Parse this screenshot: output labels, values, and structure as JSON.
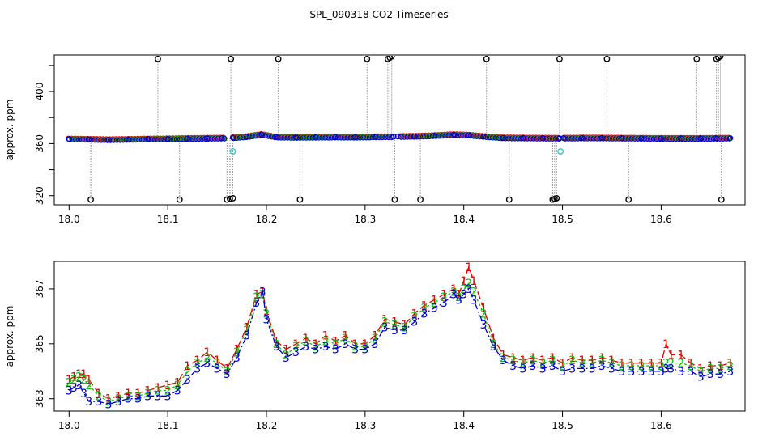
{
  "title": "SPL_090318  CO2 Timeseries",
  "colors": {
    "series1": "#e00000",
    "series2": "#10c010",
    "series3": "#0000d0",
    "outlier": "#000000",
    "flagged": "#20d0d0",
    "droplines": "#909090"
  },
  "chart_data": [
    {
      "type": "scatter",
      "name": "overview",
      "title": "SPL_090318  CO2 Timeseries",
      "xlabel": "",
      "ylabel": "approx. ppm",
      "xlim": [
        17.985,
        18.685
      ],
      "ylim": [
        313,
        428
      ],
      "xticks": [
        18.0,
        18.1,
        18.2,
        18.3,
        18.4,
        18.5,
        18.6
      ],
      "xtick_labels": [
        "18.0",
        "18.1",
        "18.2",
        "18.3",
        "18.4",
        "18.5",
        "18.6"
      ],
      "yticks": [
        320,
        360,
        400
      ],
      "ytick_labels": [
        "320",
        "360",
        "400"
      ],
      "gaps": [
        [
          18.158,
          18.166
        ],
        [
          18.329,
          18.333
        ],
        [
          18.497,
          18.501
        ]
      ],
      "main_series": {
        "x": [
          18.0,
          18.02,
          18.04,
          18.06,
          18.08,
          18.1,
          18.12,
          18.14,
          18.155,
          18.166,
          18.18,
          18.195,
          18.21,
          18.23,
          18.25,
          18.27,
          18.29,
          18.31,
          18.329,
          18.333,
          18.35,
          18.37,
          18.39,
          18.405,
          18.42,
          18.44,
          18.46,
          18.48,
          18.497,
          18.501,
          18.52,
          18.54,
          18.56,
          18.58,
          18.6,
          18.62,
          18.64,
          18.655,
          18.67
        ],
        "y": [
          363.5,
          363.3,
          363.0,
          363.2,
          363.5,
          363.6,
          363.9,
          364.1,
          364.2,
          364.5,
          365.3,
          367.0,
          365.0,
          364.8,
          364.9,
          365.0,
          364.9,
          365.2,
          365.3,
          365.4,
          365.6,
          366.1,
          366.9,
          366.5,
          365.5,
          364.4,
          364.3,
          364.2,
          364.1,
          364.2,
          364.3,
          364.3,
          364.2,
          364.1,
          364.0,
          364.0,
          364.0,
          364.1,
          364.2
        ]
      },
      "outliers_high": {
        "x": [
          18.09,
          18.164,
          18.212,
          18.302,
          18.323,
          18.325,
          18.327,
          18.423,
          18.497,
          18.545,
          18.636,
          18.656,
          18.658,
          18.66
        ],
        "y": [
          425,
          425,
          425,
          425,
          425,
          426,
          427,
          425,
          425,
          425,
          425,
          425,
          426,
          427
        ]
      },
      "outliers_low": {
        "x": [
          18.022,
          18.112,
          18.16,
          18.163,
          18.166,
          18.234,
          18.33,
          18.356,
          18.446,
          18.49,
          18.492,
          18.494,
          18.567,
          18.661
        ],
        "y": [
          317,
          317,
          317,
          317.5,
          318,
          317,
          317,
          317,
          317,
          317,
          317.5,
          318,
          317,
          317
        ]
      },
      "flagged": {
        "x": [
          18.166,
          18.498
        ],
        "y": [
          354,
          354
        ]
      }
    },
    {
      "type": "line",
      "name": "zoom",
      "title": "",
      "xlabel": "",
      "ylabel": "approx. ppm",
      "xlim": [
        17.985,
        18.685
      ],
      "ylim": [
        362.55,
        368.0
      ],
      "xticks": [
        18.0,
        18.1,
        18.2,
        18.3,
        18.4,
        18.5,
        18.6
      ],
      "xtick_labels": [
        "18.0",
        "18.1",
        "18.2",
        "18.3",
        "18.4",
        "18.5",
        "18.6"
      ],
      "yticks": [
        363,
        365,
        367
      ],
      "ytick_labels": [
        "363",
        "365",
        "367"
      ],
      "series": [
        {
          "name": "1",
          "marker": "1",
          "color": "#e00000",
          "dash": "10,4",
          "x": [
            18.0,
            18.005,
            18.01,
            18.015,
            18.02,
            18.03,
            18.04,
            18.05,
            18.06,
            18.07,
            18.08,
            18.09,
            18.1,
            18.11,
            18.12,
            18.13,
            18.14,
            18.15,
            18.16,
            18.17,
            18.18,
            18.19,
            18.196,
            18.2,
            18.21,
            18.22,
            18.23,
            18.24,
            18.25,
            18.26,
            18.27,
            18.28,
            18.29,
            18.3,
            18.31,
            18.32,
            18.33,
            18.34,
            18.35,
            18.36,
            18.37,
            18.38,
            18.39,
            18.395,
            18.4,
            18.405,
            18.41,
            18.42,
            18.43,
            18.44,
            18.45,
            18.46,
            18.47,
            18.48,
            18.49,
            18.5,
            18.51,
            18.52,
            18.53,
            18.54,
            18.55,
            18.56,
            18.57,
            18.58,
            18.59,
            18.6,
            18.605,
            18.61,
            18.62,
            18.63,
            18.64,
            18.65,
            18.66,
            18.67
          ],
          "y": [
            363.7,
            363.8,
            363.9,
            363.9,
            363.7,
            363.2,
            363.0,
            363.1,
            363.2,
            363.2,
            363.3,
            363.4,
            363.5,
            363.6,
            364.2,
            364.4,
            364.7,
            364.4,
            364.1,
            364.8,
            365.6,
            366.8,
            366.9,
            366.2,
            365.1,
            364.8,
            365.0,
            365.2,
            365.0,
            365.3,
            365.1,
            365.3,
            365.0,
            365.0,
            365.3,
            365.9,
            365.8,
            365.7,
            366.1,
            366.4,
            366.6,
            366.8,
            367.0,
            366.8,
            367.3,
            367.8,
            367.3,
            366.3,
            365.2,
            364.6,
            364.5,
            364.4,
            364.5,
            364.4,
            364.5,
            364.3,
            364.5,
            364.4,
            364.4,
            364.5,
            364.4,
            364.3,
            364.3,
            364.3,
            364.3,
            364.3,
            365.0,
            364.6,
            364.6,
            364.3,
            364.1,
            364.2,
            364.2,
            364.3
          ]
        },
        {
          "name": "2",
          "marker": "2",
          "color": "#10c010",
          "dash": "3,3",
          "x": [
            18.0,
            18.005,
            18.01,
            18.015,
            18.02,
            18.03,
            18.04,
            18.05,
            18.06,
            18.07,
            18.08,
            18.09,
            18.1,
            18.11,
            18.12,
            18.13,
            18.14,
            18.15,
            18.16,
            18.17,
            18.18,
            18.19,
            18.196,
            18.2,
            18.21,
            18.22,
            18.23,
            18.24,
            18.25,
            18.26,
            18.27,
            18.28,
            18.29,
            18.3,
            18.31,
            18.32,
            18.33,
            18.34,
            18.35,
            18.36,
            18.37,
            18.38,
            18.39,
            18.395,
            18.4,
            18.405,
            18.41,
            18.42,
            18.43,
            18.44,
            18.45,
            18.46,
            18.47,
            18.48,
            18.49,
            18.5,
            18.51,
            18.52,
            18.53,
            18.54,
            18.55,
            18.56,
            18.57,
            18.58,
            18.59,
            18.6,
            18.605,
            18.61,
            18.62,
            18.63,
            18.64,
            18.65,
            18.66,
            18.67
          ],
          "y": [
            363.6,
            363.7,
            363.8,
            363.7,
            363.5,
            363.1,
            362.9,
            363.0,
            363.1,
            363.1,
            363.2,
            363.3,
            363.3,
            363.5,
            364.0,
            364.3,
            364.5,
            364.3,
            364.0,
            364.7,
            365.5,
            366.7,
            366.8,
            366.1,
            365.0,
            364.6,
            364.9,
            365.1,
            364.9,
            365.1,
            365.0,
            365.2,
            364.9,
            364.9,
            365.2,
            365.8,
            365.7,
            365.6,
            366.0,
            366.3,
            366.5,
            366.7,
            366.9,
            366.7,
            367.0,
            367.2,
            366.9,
            366.1,
            365.0,
            364.5,
            364.4,
            364.3,
            364.4,
            364.3,
            364.4,
            364.2,
            364.4,
            364.3,
            364.3,
            364.4,
            364.3,
            364.2,
            364.2,
            364.2,
            364.2,
            364.2,
            364.3,
            364.3,
            364.3,
            364.2,
            364.0,
            364.1,
            364.1,
            364.2
          ]
        },
        {
          "name": "3",
          "marker": "3",
          "color": "#0000d0",
          "dash": "8,3,2,3",
          "x": [
            18.0,
            18.005,
            18.01,
            18.015,
            18.02,
            18.03,
            18.04,
            18.05,
            18.06,
            18.07,
            18.08,
            18.09,
            18.1,
            18.11,
            18.12,
            18.13,
            18.14,
            18.15,
            18.16,
            18.17,
            18.18,
            18.19,
            18.196,
            18.2,
            18.21,
            18.22,
            18.23,
            18.24,
            18.25,
            18.26,
            18.27,
            18.28,
            18.29,
            18.3,
            18.31,
            18.32,
            18.33,
            18.34,
            18.35,
            18.36,
            18.37,
            18.38,
            18.39,
            18.395,
            18.4,
            18.405,
            18.41,
            18.42,
            18.43,
            18.44,
            18.45,
            18.46,
            18.47,
            18.48,
            18.49,
            18.5,
            18.51,
            18.52,
            18.53,
            18.54,
            18.55,
            18.56,
            18.57,
            18.58,
            18.59,
            18.6,
            18.605,
            18.61,
            18.62,
            18.63,
            18.64,
            18.65,
            18.66,
            18.67
          ],
          "y": [
            363.3,
            363.4,
            363.5,
            363.2,
            362.9,
            362.9,
            362.8,
            362.9,
            363.0,
            363.0,
            363.1,
            363.1,
            363.1,
            363.3,
            363.7,
            364.1,
            364.3,
            364.1,
            363.9,
            364.5,
            365.3,
            366.5,
            366.9,
            365.9,
            364.9,
            364.5,
            364.7,
            364.9,
            364.8,
            364.9,
            364.8,
            365.0,
            364.8,
            364.8,
            365.0,
            365.6,
            365.5,
            365.5,
            365.8,
            366.1,
            366.3,
            366.5,
            366.8,
            366.6,
            366.8,
            367.0,
            366.6,
            365.7,
            364.9,
            364.4,
            364.2,
            364.1,
            364.2,
            364.1,
            364.2,
            364.0,
            364.1,
            364.1,
            364.1,
            364.2,
            364.1,
            364.0,
            364.0,
            364.0,
            364.0,
            364.0,
            364.1,
            364.1,
            364.0,
            364.0,
            363.8,
            363.9,
            363.9,
            364.0
          ]
        }
      ]
    }
  ]
}
